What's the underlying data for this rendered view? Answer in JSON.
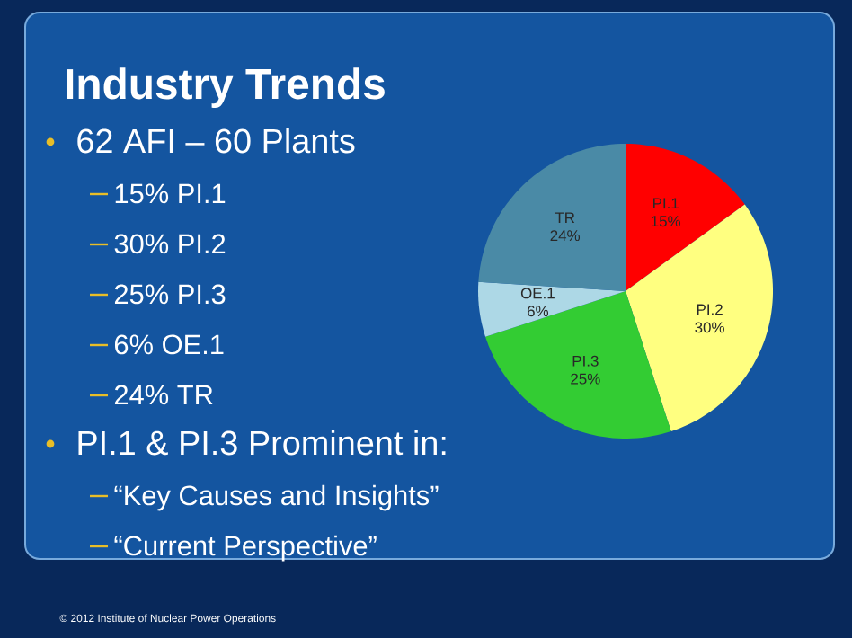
{
  "chart_data": {
    "type": "pie",
    "title": "Industry Trends",
    "categories": [
      "PI.1",
      "PI.2",
      "PI.3",
      "OE.1",
      "TR"
    ],
    "values": [
      15,
      30,
      25,
      6,
      24
    ],
    "value_labels": [
      "15%",
      "30%",
      "25%",
      "6%",
      "24%"
    ],
    "colors": [
      "#ff0000",
      "#ffff80",
      "#33cc33",
      "#add8e6",
      "#4a8aa6"
    ],
    "annotations": [
      "62 AFI – 60 Plants",
      "15% PI.1",
      "30% PI.2",
      "25% PI.3",
      "6% OE.1",
      "24% TR",
      "PI.1 & PI.3 Prominent in:",
      "“Key Causes and Insights”",
      "“Current Perspective”",
      "© 2012 Institute of Nuclear Power Operations"
    ]
  }
}
